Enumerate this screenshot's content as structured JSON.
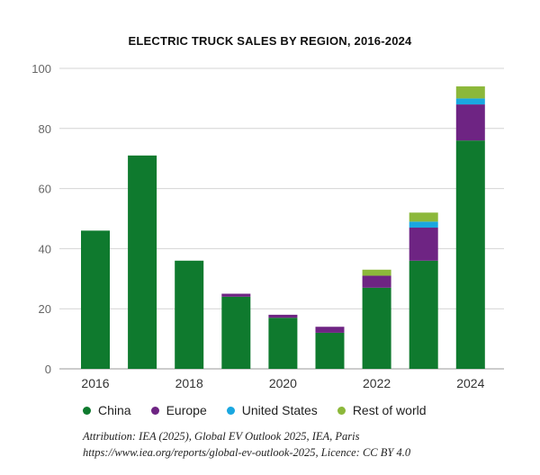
{
  "chart_data": {
    "type": "bar",
    "stacked": true,
    "title": "ELECTRIC TRUCK SALES BY REGION, 2016-2024",
    "xlabel": "",
    "ylabel": "",
    "ylim": [
      0,
      100
    ],
    "yticks": [
      0,
      20,
      40,
      60,
      80,
      100
    ],
    "categories": [
      "2016",
      "2017",
      "2018",
      "2019",
      "2020",
      "2021",
      "2022",
      "2023",
      "2024"
    ],
    "xtick_labels": [
      "2016",
      "",
      "2018",
      "",
      "2020",
      "",
      "2022",
      "",
      "2024"
    ],
    "series": [
      {
        "name": "China",
        "color": "#0f7a2e",
        "values": [
          46,
          71,
          36,
          24,
          17,
          12,
          27,
          36,
          76
        ]
      },
      {
        "name": "Europe",
        "color": "#6e2483",
        "values": [
          0,
          0,
          0,
          1,
          1,
          2,
          4,
          11,
          12
        ]
      },
      {
        "name": "United States",
        "color": "#1aa7e0",
        "values": [
          0,
          0,
          0,
          0,
          0,
          0,
          0,
          2,
          2
        ]
      },
      {
        "name": "Rest of world",
        "color": "#8cb83a",
        "values": [
          0,
          0,
          0,
          0,
          0,
          0,
          2,
          3,
          4
        ]
      }
    ],
    "legend": "bottom"
  },
  "attribution": {
    "line1": "Attribution: IEA (2025), Global EV Outlook 2025, IEA, Paris",
    "line2": "https://www.iea.org/reports/global-ev-outlook-2025, Licence: CC BY 4.0"
  }
}
